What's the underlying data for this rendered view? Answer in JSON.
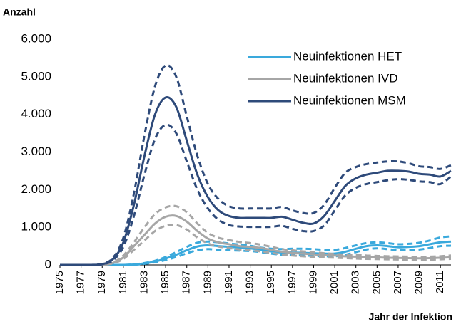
{
  "chart_data": {
    "type": "line",
    "ylabel": "Anzahl",
    "xlabel": "Jahr der Infektion",
    "x": [
      1975,
      1976,
      1977,
      1978,
      1979,
      1980,
      1981,
      1982,
      1983,
      1984,
      1985,
      1986,
      1987,
      1988,
      1989,
      1990,
      1991,
      1992,
      1993,
      1994,
      1995,
      1996,
      1997,
      1998,
      1999,
      2000,
      2001,
      2002,
      2003,
      2004,
      2005,
      2006,
      2007,
      2008,
      2009,
      2010,
      2011,
      2012
    ],
    "xlim": [
      1975,
      2012
    ],
    "xticks": [
      1975,
      1977,
      1979,
      1981,
      1983,
      1985,
      1987,
      1989,
      1991,
      1993,
      1995,
      1997,
      1999,
      2001,
      2003,
      2005,
      2007,
      2009,
      2011
    ],
    "ylim": [
      0,
      6000
    ],
    "yticks": [
      {
        "value": 0,
        "label": "0"
      },
      {
        "value": 1000,
        "label": "1.000"
      },
      {
        "value": 2000,
        "label": "2.000"
      },
      {
        "value": 3000,
        "label": "3.000"
      },
      {
        "value": 4000,
        "label": "4.000"
      },
      {
        "value": 5000,
        "label": "5.000"
      },
      {
        "value": 6000,
        "label": "6.000"
      }
    ],
    "legend": "upper right",
    "series": [
      {
        "name": "Neuinfektionen HET",
        "color": "#3aa9dc",
        "values": [
          0,
          0,
          0,
          0,
          0,
          0,
          0,
          10,
          40,
          90,
          170,
          270,
          390,
          490,
          520,
          500,
          480,
          460,
          440,
          400,
          360,
          330,
          330,
          320,
          310,
          300,
          300,
          350,
          430,
          500,
          520,
          500,
          470,
          480,
          500,
          550,
          600,
          620
        ],
        "upper": [
          0,
          0,
          0,
          0,
          0,
          0,
          0,
          15,
          50,
          110,
          210,
          340,
          480,
          590,
          620,
          600,
          570,
          540,
          510,
          460,
          430,
          420,
          430,
          430,
          420,
          400,
          400,
          450,
          520,
          580,
          600,
          580,
          550,
          560,
          590,
          650,
          730,
          760
        ],
        "lower": [
          0,
          0,
          0,
          0,
          0,
          0,
          0,
          5,
          30,
          70,
          130,
          210,
          310,
          390,
          420,
          400,
          390,
          380,
          370,
          340,
          300,
          270,
          260,
          250,
          240,
          230,
          230,
          270,
          340,
          410,
          440,
          420,
          390,
          390,
          410,
          450,
          500,
          510
        ]
      },
      {
        "name": "Neuinfektionen IVD",
        "color": "#a6a6a6",
        "values": [
          0,
          0,
          0,
          0,
          0,
          50,
          200,
          500,
          800,
          1100,
          1280,
          1300,
          1150,
          900,
          700,
          600,
          550,
          500,
          480,
          450,
          400,
          350,
          320,
          300,
          280,
          260,
          250,
          230,
          220,
          210,
          200,
          190,
          185,
          180,
          175,
          180,
          190,
          200
        ],
        "upper": [
          0,
          0,
          0,
          0,
          0,
          60,
          250,
          600,
          1000,
          1350,
          1530,
          1560,
          1400,
          1100,
          850,
          720,
          660,
          610,
          580,
          540,
          480,
          420,
          390,
          360,
          340,
          310,
          290,
          270,
          260,
          250,
          240,
          230,
          225,
          220,
          215,
          220,
          230,
          250
        ],
        "lower": [
          0,
          0,
          0,
          0,
          0,
          40,
          160,
          400,
          650,
          900,
          1040,
          1060,
          940,
          730,
          570,
          490,
          450,
          410,
          390,
          360,
          320,
          280,
          250,
          230,
          210,
          200,
          190,
          180,
          170,
          160,
          155,
          150,
          145,
          140,
          135,
          140,
          150,
          160
        ]
      },
      {
        "name": "Neuinfektionen MSM",
        "color": "#2e4a7a",
        "values": [
          0,
          0,
          0,
          0,
          20,
          150,
          600,
          1600,
          2900,
          4000,
          4450,
          4200,
          3300,
          2400,
          1800,
          1450,
          1300,
          1250,
          1250,
          1250,
          1250,
          1280,
          1200,
          1120,
          1100,
          1300,
          1700,
          2100,
          2300,
          2400,
          2450,
          2500,
          2500,
          2480,
          2420,
          2400,
          2350,
          2500
        ],
        "upper": [
          0,
          0,
          0,
          0,
          25,
          180,
          720,
          1900,
          3450,
          4750,
          5300,
          5000,
          3950,
          2900,
          2150,
          1750,
          1560,
          1500,
          1500,
          1500,
          1500,
          1540,
          1450,
          1380,
          1380,
          1600,
          2050,
          2450,
          2600,
          2680,
          2720,
          2750,
          2750,
          2700,
          2620,
          2600,
          2550,
          2650
        ],
        "lower": [
          0,
          0,
          0,
          0,
          15,
          120,
          480,
          1300,
          2400,
          3350,
          3720,
          3500,
          2750,
          2000,
          1500,
          1200,
          1060,
          1020,
          1010,
          1010,
          1010,
          1040,
          960,
          900,
          900,
          1050,
          1450,
          1850,
          2050,
          2150,
          2200,
          2250,
          2280,
          2260,
          2220,
          2200,
          2150,
          2350
        ]
      }
    ]
  }
}
